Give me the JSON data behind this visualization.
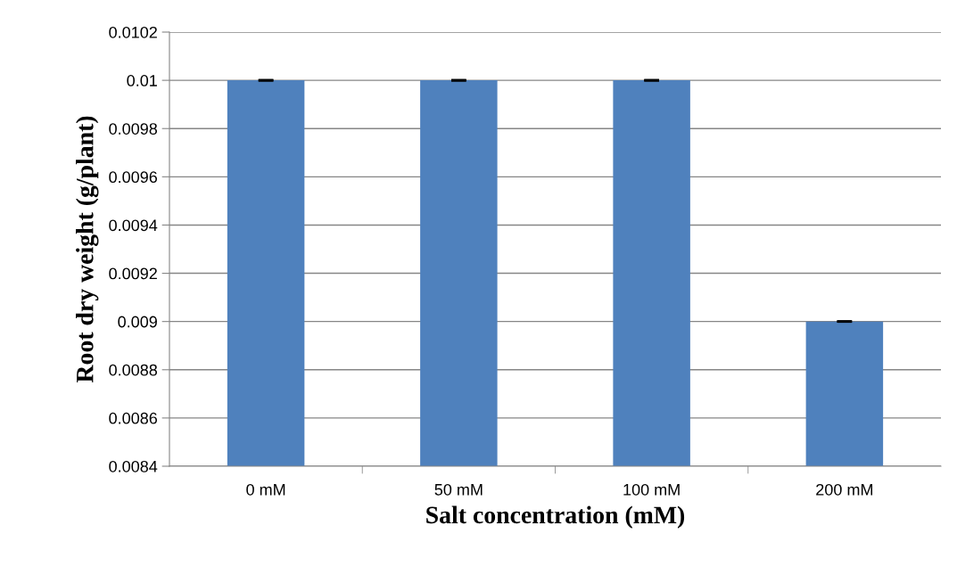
{
  "chart_data": {
    "type": "bar",
    "xlabel": "Salt concentration (mM)",
    "ylabel": "Root dry weight (g/plant)",
    "categories": [
      "0 mM",
      "50 mM",
      "100 mM",
      "200 mM"
    ],
    "values": [
      0.01,
      0.01,
      0.01,
      0.009
    ],
    "errors": [
      0,
      0,
      0,
      0
    ],
    "color": "#4f81bd",
    "ylim": [
      0.0084,
      0.0102
    ],
    "yticks": [
      0.0084,
      0.0086,
      0.0088,
      0.009,
      0.0092,
      0.0094,
      0.0096,
      0.0098,
      0.01,
      0.0102
    ],
    "grid": "y",
    "legend": false
  }
}
